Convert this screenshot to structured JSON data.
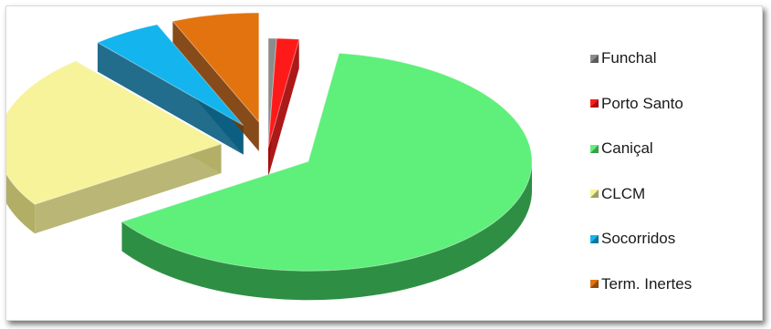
{
  "chart_data": {
    "type": "pie",
    "style": "3d-exploded",
    "legend_position": "right",
    "categories": [
      "Funchal",
      "Porto Santo",
      "Caniçal",
      "CLCM",
      "Socorridos",
      "Term. Inertes"
    ],
    "values": [
      0.6,
      1.6,
      63.5,
      23.0,
      5.0,
      6.3
    ],
    "unit": "%",
    "colors": [
      "#8c8c8c",
      "#ff1a1a",
      "#5ef07a",
      "#f6f39a",
      "#14b4ee",
      "#e2730f"
    ],
    "side_colors": [
      "#4a4a4a",
      "#a30000",
      "#2e8f44",
      "#b2ae66",
      "#0a5d7e",
      "#7a3600"
    ]
  }
}
